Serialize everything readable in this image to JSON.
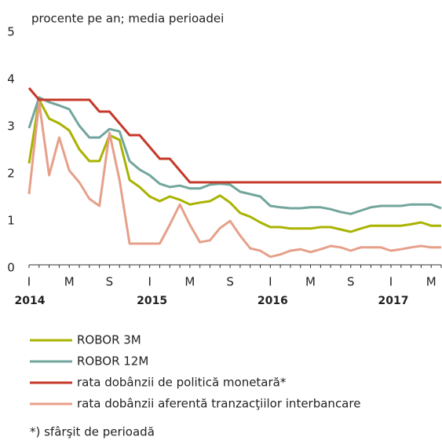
{
  "chart_data": {
    "type": "line",
    "subtitle": "procente pe an; media perioadei",
    "categories": [
      "I",
      null,
      null,
      null,
      "M",
      null,
      null,
      null,
      "S",
      null,
      null,
      null,
      "I",
      null,
      null,
      null,
      "M",
      null,
      null,
      null,
      "S",
      null,
      null,
      null,
      "I",
      null,
      null,
      null,
      "M",
      null,
      null,
      null,
      "S",
      null,
      null,
      null,
      "I",
      null,
      null,
      null,
      "M",
      null
    ],
    "years": [
      "2014",
      "2015",
      "2016",
      "2017"
    ],
    "ylim": [
      0,
      5
    ],
    "yticks": [
      0,
      1,
      2,
      3,
      4,
      5
    ],
    "grid": false,
    "series": [
      {
        "name": "ROBOR 3M",
        "color": "#a9b300",
        "values": [
          2.15,
          3.5,
          3.1,
          3.0,
          2.85,
          2.45,
          2.2,
          2.2,
          2.75,
          2.65,
          1.8,
          1.65,
          1.45,
          1.35,
          1.45,
          1.38,
          1.28,
          1.32,
          1.35,
          1.47,
          1.32,
          1.1,
          1.02,
          0.9,
          0.8,
          0.8,
          0.77,
          0.77,
          0.77,
          0.8,
          0.8,
          0.75,
          0.7,
          0.77,
          0.83,
          0.83,
          0.83,
          0.83,
          0.86,
          0.9,
          0.83,
          0.83
        ]
      },
      {
        "name": "ROBOR 12M",
        "color": "#72a59c",
        "values": [
          2.9,
          3.55,
          3.45,
          3.38,
          3.3,
          2.95,
          2.7,
          2.7,
          2.88,
          2.83,
          2.2,
          2.02,
          1.9,
          1.72,
          1.65,
          1.68,
          1.62,
          1.62,
          1.7,
          1.72,
          1.7,
          1.55,
          1.5,
          1.45,
          1.25,
          1.22,
          1.2,
          1.2,
          1.22,
          1.22,
          1.18,
          1.12,
          1.08,
          1.15,
          1.22,
          1.25,
          1.25,
          1.25,
          1.28,
          1.28,
          1.28,
          1.2
        ]
      },
      {
        "name": "rata dobânzii de politică monetară*",
        "color": "#c5392a",
        "values": [
          3.75,
          3.5,
          3.5,
          3.5,
          3.5,
          3.5,
          3.5,
          3.25,
          3.25,
          3.0,
          2.75,
          2.75,
          2.5,
          2.25,
          2.25,
          2.0,
          1.75,
          1.75,
          1.75,
          1.75,
          1.75,
          1.75,
          1.75,
          1.75,
          1.75,
          1.75,
          1.75,
          1.75,
          1.75,
          1.75,
          1.75,
          1.75,
          1.75,
          1.75,
          1.75,
          1.75,
          1.75,
          1.75,
          1.75,
          1.75,
          1.75,
          1.75
        ]
      },
      {
        "name": "rata dobânzii aferentă tranzacţiilor interbancare",
        "color": "#e6a08a",
        "values": [
          1.5,
          3.45,
          1.9,
          2.7,
          2.0,
          1.75,
          1.4,
          1.25,
          2.8,
          1.8,
          0.45,
          0.45,
          0.45,
          0.45,
          0.85,
          1.28,
          0.85,
          0.48,
          0.52,
          0.78,
          0.93,
          0.62,
          0.35,
          0.3,
          0.17,
          0.22,
          0.3,
          0.33,
          0.27,
          0.33,
          0.4,
          0.37,
          0.3,
          0.37,
          0.37,
          0.37,
          0.3,
          0.33,
          0.37,
          0.4,
          0.37,
          0.37
        ]
      }
    ],
    "footnote": "*) sfârşit de perioadă"
  }
}
